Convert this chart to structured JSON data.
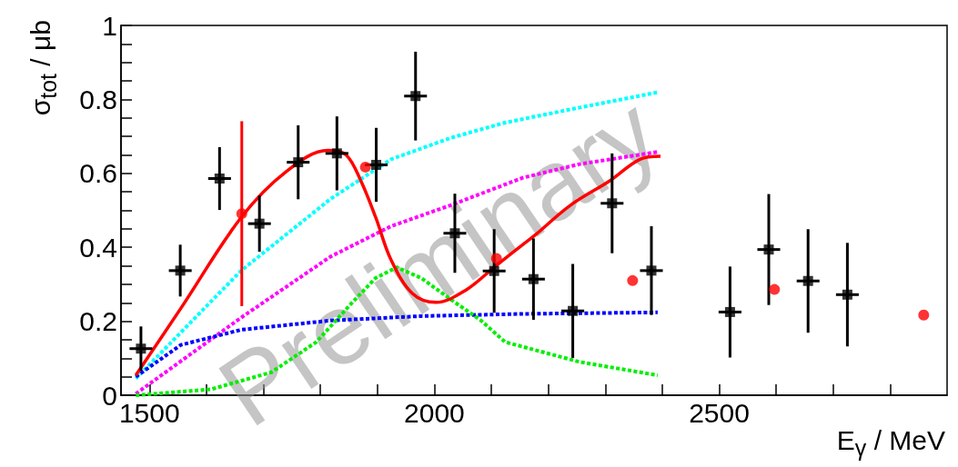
{
  "chart_data": {
    "type": "scatter",
    "xlabel": "E$_{γ}$ / MeV",
    "ylabel": "σ$_{tot}$ / μb",
    "xlim": [
      1450,
      2900
    ],
    "ylim": [
      0,
      1
    ],
    "xticks": [
      1500,
      {
        "value": 1600,
        "label": null
      },
      {
        "value": 1700,
        "label": null
      },
      {
        "value": 1800,
        "label": null
      },
      {
        "value": 1900,
        "label": null
      },
      2000,
      {
        "value": 2100,
        "label": null
      },
      {
        "value": 2200,
        "label": null
      },
      {
        "value": 2300,
        "label": null
      },
      {
        "value": 2400,
        "label": null
      },
      2500,
      {
        "value": 2600,
        "label": null
      },
      {
        "value": 2700,
        "label": null
      },
      {
        "value": 2800,
        "label": null
      }
    ],
    "yticks": [
      0,
      {
        "value": 0.05,
        "label": null
      },
      {
        "value": 0.1,
        "label": null
      },
      {
        "value": 0.15,
        "label": null
      },
      0.2,
      {
        "value": 0.25,
        "label": null
      },
      {
        "value": 0.3,
        "label": null
      },
      {
        "value": 0.35,
        "label": null
      },
      0.4,
      {
        "value": 0.45,
        "label": null
      },
      {
        "value": 0.5,
        "label": null
      },
      {
        "value": 0.55,
        "label": null
      },
      0.6,
      {
        "value": 0.65,
        "label": null
      },
      {
        "value": 0.7,
        "label": null
      },
      {
        "value": 0.75,
        "label": null
      },
      0.8,
      {
        "value": 0.85,
        "label": null
      },
      {
        "value": 0.9,
        "label": null
      },
      {
        "value": 0.95,
        "label": null
      },
      1
    ],
    "annotations": [
      "Preliminary"
    ],
    "series": [
      {
        "type": "line",
        "color": "#00ffff",
        "line_style": "dotted",
        "marker": "none",
        "x": [
          1476,
          1661,
          1818,
          1924,
          2029,
          2124,
          2255,
          2392
        ],
        "values": [
          0.045,
          0.337,
          0.531,
          0.638,
          0.696,
          0.737,
          0.778,
          0.819
        ]
      },
      {
        "type": "line",
        "color": "#ff00ff",
        "line_style": "dotted",
        "marker": "none",
        "x": [
          1476,
          1661,
          1818,
          1924,
          2029,
          2155,
          2255,
          2392
        ],
        "values": [
          0.004,
          0.21,
          0.375,
          0.457,
          0.514,
          0.588,
          0.625,
          0.658
        ]
      },
      {
        "type": "line",
        "color": "#0000ff",
        "line_style": "dotted",
        "marker": "none",
        "x": [
          1476,
          1555,
          1661,
          1818,
          1977,
          2155,
          2392
        ],
        "values": [
          0.05,
          0.136,
          0.177,
          0.202,
          0.214,
          0.22,
          0.224
        ]
      },
      {
        "type": "line",
        "color": "#00ee00",
        "line_style": "dotted",
        "marker": "none",
        "x": [
          1476,
          1608,
          1714,
          1793,
          1856,
          1897,
          1934,
          1977,
          2029,
          2082,
          2124,
          2255,
          2392
        ],
        "values": [
          0.0,
          0.016,
          0.062,
          0.144,
          0.251,
          0.317,
          0.346,
          0.317,
          0.259,
          0.202,
          0.144,
          0.09,
          0.054
        ]
      },
      {
        "type": "line",
        "color": "#ff0000",
        "line_style": "solid",
        "marker": "none",
        "x": [
          1476,
          1555,
          1661,
          1740,
          1813,
          1845,
          1871,
          1897,
          1924,
          1961,
          2003,
          2055,
          2108,
          2155,
          2176,
          2239,
          2308,
          2361,
          2397
        ],
        "values": [
          0.054,
          0.235,
          0.481,
          0.605,
          0.662,
          0.65,
          0.58,
          0.481,
          0.366,
          0.276,
          0.251,
          0.284,
          0.35,
          0.407,
          0.432,
          0.514,
          0.58,
          0.638,
          0.646
        ]
      },
      {
        "color": "#000000",
        "marker": "square",
        "x": [
          1485,
          1554,
          1623,
          1693,
          1761,
          1829,
          1898,
          1967,
          2036,
          2105,
          2174,
          2243,
          2312,
          2381,
          2519,
          2587,
          2656,
          2725
        ],
        "values": [
          0.126,
          0.337,
          0.586,
          0.464,
          0.63,
          0.654,
          0.623,
          0.809,
          0.438,
          0.336,
          0.314,
          0.228,
          0.519,
          0.337,
          0.225,
          0.394,
          0.309,
          0.272
        ],
        "errors": [
          0.06,
          0.07,
          0.085,
          0.076,
          0.1,
          0.1,
          0.1,
          0.12,
          0.107,
          0.113,
          0.11,
          0.127,
          0.135,
          0.12,
          0.123,
          0.15,
          0.14,
          0.14
        ],
        "xerrors": [
          20,
          20,
          20,
          20,
          20,
          20,
          20,
          20,
          20,
          20,
          20,
          20,
          20,
          20,
          20,
          20,
          20,
          20
        ]
      },
      {
        "color": "#ff0000",
        "marker": "circle",
        "x": [
          1662,
          1879,
          2109,
          2348,
          2597,
          2859
        ],
        "values": [
          0.491,
          0.617,
          0.37,
          0.31,
          0.286,
          0.217
        ],
        "errors": [
          0.25,
          null,
          null,
          null,
          null,
          null
        ]
      }
    ]
  }
}
